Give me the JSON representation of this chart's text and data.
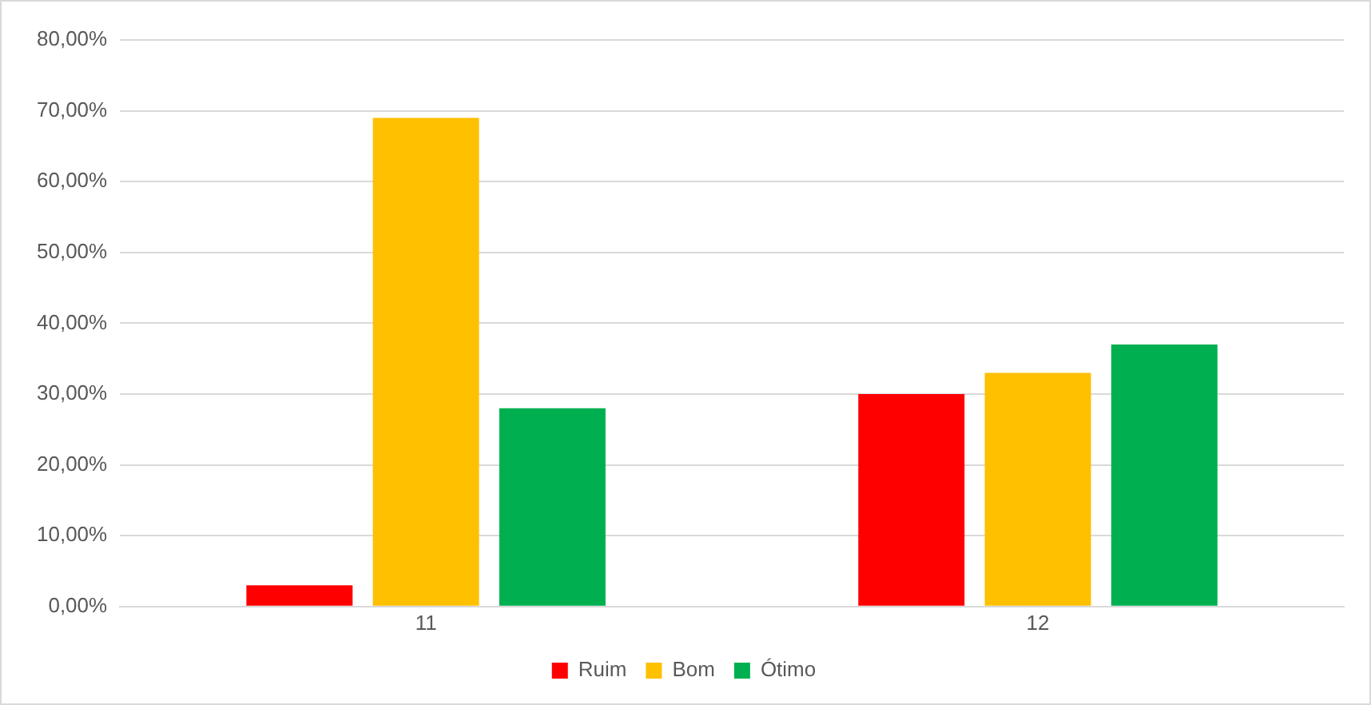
{
  "chart_data": {
    "type": "bar",
    "categories": [
      "11",
      "12"
    ],
    "series": [
      {
        "name": "Ruim",
        "color": "#ff0000",
        "values": [
          3,
          30
        ]
      },
      {
        "name": "Bom",
        "color": "#ffc000",
        "values": [
          69,
          33
        ]
      },
      {
        "name": "Ótimo",
        "color": "#00b050",
        "values": [
          28,
          37
        ]
      }
    ],
    "ylim": [
      0,
      80
    ],
    "yticks": [
      {
        "value": 0,
        "label": "0,00%"
      },
      {
        "value": 10,
        "label": "10,00%"
      },
      {
        "value": 20,
        "label": "20,00%"
      },
      {
        "value": 30,
        "label": "30,00%"
      },
      {
        "value": 40,
        "label": "40,00%"
      },
      {
        "value": 50,
        "label": "50,00%"
      },
      {
        "value": 60,
        "label": "60,00%"
      },
      {
        "value": 70,
        "label": "70,00%"
      },
      {
        "value": 80,
        "label": "80,00%"
      }
    ],
    "grid": "y",
    "legend": "bottom"
  }
}
